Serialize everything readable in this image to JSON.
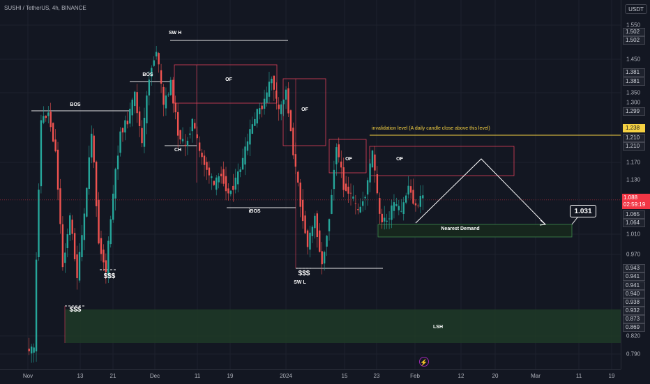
{
  "header": {
    "symbol": "SUSHI / TetherUS, 4h, BINANCE",
    "currency": "USDT"
  },
  "colors": {
    "background": "#131722",
    "candle_up": "#26a69a",
    "candle_down": "#ef5350",
    "order_block": "#e0405a",
    "demand_zone": "#2e6b3a",
    "invalidation_line": "#f5d142",
    "annotation_text": "#ffffff"
  },
  "price_axis": {
    "labels": [
      "1.550",
      "1.450",
      "1.350",
      "1.300",
      "1.170",
      "1.130",
      "1.010",
      "0.970",
      "0.820",
      "0.790"
    ],
    "tags": [
      "1.502",
      "1.502",
      "1.381",
      "1.381",
      "1.299",
      "1.210",
      "1.210",
      "1.065",
      "1.064",
      "0.943",
      "0.941",
      "0.941",
      "0.940",
      "0.938",
      "0.932",
      "0.873",
      "0.869"
    ],
    "invalidation_tag": "1.238",
    "current_price": "1.088",
    "countdown": "02:59:19"
  },
  "time_axis": {
    "labels": [
      "Nov",
      "13",
      "21",
      "Dec",
      "11",
      "19",
      "2024",
      "15",
      "23",
      "Feb",
      "12",
      "20",
      "Mar",
      "11",
      "19"
    ]
  },
  "annotations": {
    "bos_1": "BOS",
    "bos_2": "BOS",
    "sw_h": "SW H",
    "of_1": "OF",
    "of_2": "OF",
    "of_3": "OF",
    "of_4": "OF",
    "ch": "CH",
    "ibos": "iBOS",
    "liq_1": "$$$",
    "liq_2": "$$$",
    "liq_3": "$$$",
    "sw_l": "SW L",
    "nearest_demand": "Nearest Demand",
    "lsh": "LSH",
    "invalidation": "invalidation level (A daily candle close above this level)",
    "target": "1.031"
  },
  "chart_data": {
    "type": "candlestick",
    "y_range": [
      0.78,
      1.57
    ],
    "y_scale": "log",
    "x_labels": [
      "Nov",
      "13",
      "21",
      "Dec",
      "11",
      "19",
      "2024",
      "15",
      "23",
      "Feb",
      "12",
      "20",
      "Mar",
      "11",
      "19"
    ],
    "series": [
      {
        "values": [
          [
            0.8,
            0.8
          ],
          [
            0.8,
            1.28
          ],
          [
            1.28,
            1.3
          ],
          [
            1.3,
            1.2
          ],
          [
            1.2,
            0.95
          ],
          [
            0.95,
            1.05
          ],
          [
            1.05,
            0.93
          ],
          [
            0.93,
            1.05
          ],
          [
            1.05,
            1.25
          ],
          [
            1.25,
            1.0
          ],
          [
            1.0,
            0.94
          ],
          [
            0.94,
            1.1
          ],
          [
            1.1,
            1.25
          ],
          [
            1.25,
            1.28
          ],
          [
            1.28,
            1.35
          ],
          [
            1.35,
            1.22
          ],
          [
            1.22,
            1.4
          ],
          [
            1.4,
            1.48
          ],
          [
            1.48,
            1.32
          ],
          [
            1.32,
            1.38
          ],
          [
            1.38,
            1.25
          ],
          [
            1.25,
            1.21
          ],
          [
            1.21,
            1.28
          ],
          [
            1.28,
            1.2
          ],
          [
            1.2,
            1.16
          ],
          [
            1.16,
            1.12
          ],
          [
            1.12,
            1.15
          ],
          [
            1.15,
            1.1
          ],
          [
            1.1,
            1.13
          ],
          [
            1.13,
            1.18
          ],
          [
            1.18,
            1.25
          ],
          [
            1.25,
            1.3
          ],
          [
            1.3,
            1.33
          ],
          [
            1.33,
            1.4
          ],
          [
            1.4,
            1.3
          ],
          [
            1.3,
            1.36
          ],
          [
            1.36,
            1.2
          ],
          [
            1.2,
            1.08
          ],
          [
            1.08,
            0.99
          ],
          [
            0.99,
            1.05
          ],
          [
            1.05,
            0.95
          ],
          [
            0.95,
            1.05
          ],
          [
            1.05,
            1.22
          ],
          [
            1.22,
            1.12
          ],
          [
            1.12,
            1.1
          ],
          [
            1.1,
            1.06
          ],
          [
            1.06,
            1.1
          ],
          [
            1.1,
            1.2
          ],
          [
            1.2,
            1.05
          ],
          [
            1.05,
            1.04
          ],
          [
            1.04,
            1.08
          ],
          [
            1.08,
            1.06
          ],
          [
            1.06,
            1.12
          ],
          [
            1.12,
            1.07
          ],
          [
            1.07,
            1.1
          ]
        ]
      }
    ],
    "levels": {
      "sw_h": 1.502,
      "sw_l": 0.943,
      "invalidation": 1.238,
      "nearest_demand": [
        1.01,
        1.064
      ],
      "lsh_zone": [
        0.82,
        0.932
      ],
      "target": 1.031,
      "current": 1.088
    }
  }
}
